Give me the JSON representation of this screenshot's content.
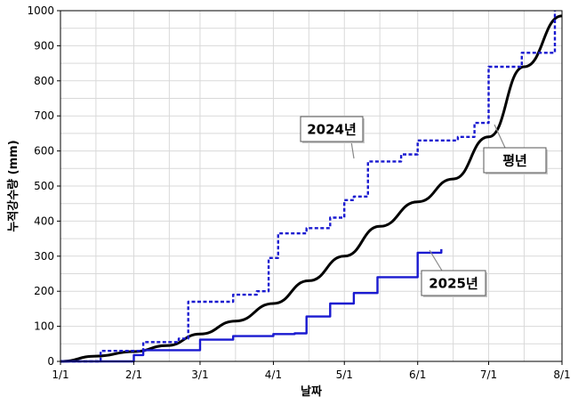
{
  "chart_data": {
    "type": "line",
    "xlabel": "날짜",
    "ylabel": "누적강수량 (mm)",
    "x_ticks": [
      "1/1",
      "2/1",
      "3/1",
      "4/1",
      "5/1",
      "6/1",
      "7/1",
      "8/1"
    ],
    "ylim": [
      0,
      1000
    ],
    "y_ticks": [
      0,
      100,
      200,
      300,
      400,
      500,
      600,
      700,
      800,
      900,
      1000
    ],
    "grid": true,
    "series": [
      {
        "name": "평년",
        "color": "#000000",
        "style": "solid",
        "x": [
          "1/1",
          "1/16",
          "2/1",
          "2/15",
          "3/1",
          "3/16",
          "4/1",
          "4/16",
          "5/1",
          "5/16",
          "6/1",
          "6/16",
          "7/1",
          "7/16",
          "8/1"
        ],
        "y": [
          0,
          15,
          28,
          45,
          78,
          115,
          165,
          230,
          300,
          385,
          455,
          520,
          640,
          840,
          985
        ]
      },
      {
        "name": "2024년",
        "color": "#1a1ad0",
        "style": "dashed",
        "x": [
          "1/1",
          "1/18",
          "2/5",
          "2/20",
          "2/24",
          "3/15",
          "3/25",
          "3/30",
          "4/3",
          "4/15",
          "4/25",
          "5/1",
          "5/5",
          "5/11",
          "5/25",
          "6/1",
          "6/18",
          "6/25",
          "7/1",
          "7/15",
          "7/29"
        ],
        "y": [
          0,
          30,
          55,
          65,
          170,
          190,
          200,
          295,
          365,
          380,
          410,
          460,
          470,
          570,
          590,
          630,
          640,
          680,
          840,
          880,
          1000
        ]
      },
      {
        "name": "2025년",
        "color": "#1a1ad0",
        "style": "solid",
        "x": [
          "1/1",
          "1/28",
          "2/1",
          "2/5",
          "3/1",
          "3/15",
          "4/1",
          "4/10",
          "4/15",
          "4/25",
          "5/5",
          "5/15",
          "6/1",
          "6/11"
        ],
        "y": [
          0,
          0,
          18,
          32,
          62,
          72,
          78,
          80,
          128,
          165,
          195,
          240,
          310,
          320
        ]
      }
    ],
    "annotations": [
      {
        "label": "2024년",
        "series": "2024년"
      },
      {
        "label": "평년",
        "series": "평년"
      },
      {
        "label": "2025년",
        "series": "2025년"
      }
    ]
  }
}
